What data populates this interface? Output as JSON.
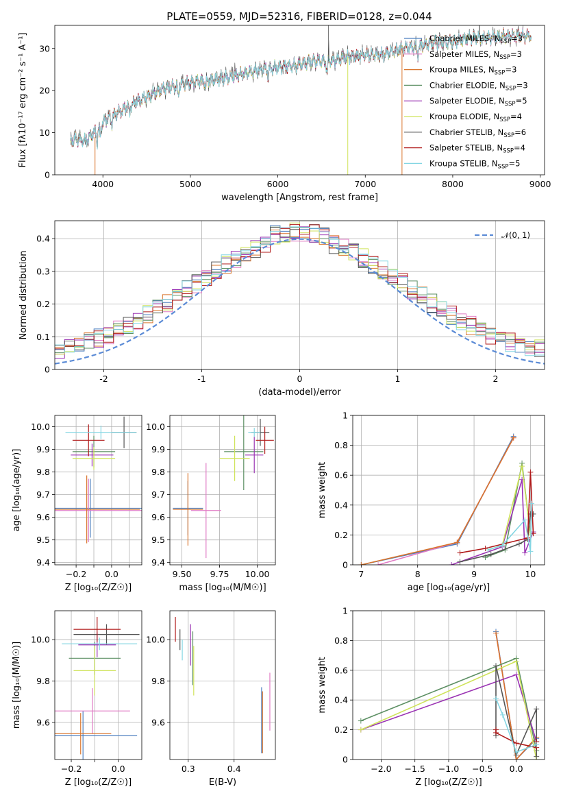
{
  "figure_title": "PLATE=0559, MJD=52316, FIBERID=0128, z=0.044",
  "colors": {
    "chabrier_miles": "#4c7fbf",
    "salpeter_miles": "#e07bc4",
    "kroupa_miles": "#d9742b",
    "chabrier_elodie": "#5c8f63",
    "salpeter_elodie": "#9a33b3",
    "kroupa_elodie": "#cfe35a",
    "chabrier_stelib": "#555555",
    "salpeter_stelib": "#b01a1a",
    "kroupa_stelib": "#84d6e3",
    "gaussian": "#5b8bd6"
  },
  "chart_data": [
    {
      "id": "spectrum",
      "type": "line",
      "title": "",
      "xlabel": "wavelength [Angstrom, rest frame]",
      "ylabel": "Flux [fλ10⁻¹⁷ erg cm⁻² s⁻¹ A⁻¹]",
      "xlim": [
        3450,
        9050
      ],
      "ylim": [
        0,
        35.5
      ],
      "xticks": [
        4000,
        5000,
        6000,
        7000,
        8000,
        9000
      ],
      "yticks": [
        0,
        10,
        20,
        30
      ],
      "grid": false,
      "legend_position": "top-right",
      "continuum_knots": {
        "x": [
          3630,
          3700,
          3800,
          3900,
          4000,
          4100,
          4200,
          4300,
          4400,
          4500,
          4600,
          4700,
          4800,
          4900,
          5000,
          5200,
          5400,
          5600,
          5800,
          6000,
          6200,
          6400,
          6600,
          6800,
          7000,
          7200,
          7400,
          7600,
          7800,
          8000,
          8200,
          8400,
          8600,
          8800,
          8900
        ],
        "y": [
          8,
          8.5,
          8,
          10,
          12.5,
          14,
          15,
          16.5,
          17.5,
          18.5,
          19.5,
          20.5,
          21,
          21.5,
          22,
          22.5,
          23,
          24,
          25,
          25.5,
          26,
          27,
          27,
          28,
          28.5,
          28.5,
          30,
          30.5,
          31.5,
          31.5,
          32.5,
          32.5,
          33,
          33,
          33
        ]
      },
      "series": [
        {
          "name": "Chabrier MILES, N_SSP=3",
          "color_key": "chabrier_miles"
        },
        {
          "name": "Salpeter MILES, N_SSP=3",
          "color_key": "salpeter_miles"
        },
        {
          "name": "Kroupa MILES, N_SSP=3",
          "color_key": "kroupa_miles"
        },
        {
          "name": "Chabrier ELODIE, N_SSP=3",
          "color_key": "chabrier_elodie"
        },
        {
          "name": "Salpeter ELODIE, N_SSP=5",
          "color_key": "salpeter_elodie"
        },
        {
          "name": "Kroupa ELODIE, N_SSP=4",
          "color_key": "kroupa_elodie"
        },
        {
          "name": "Chabrier STELIB, N_SSP=6",
          "color_key": "chabrier_stelib"
        },
        {
          "name": "Salpeter STELIB, N_SSP=4",
          "color_key": "salpeter_stelib"
        },
        {
          "name": "Kroupa STELIB, N_SSP=5",
          "color_key": "kroupa_stelib"
        }
      ]
    },
    {
      "id": "residuals",
      "type": "line",
      "xlabel": "(data-model)/error",
      "ylabel": "Normed distribution",
      "xlim": [
        -2.5,
        2.5
      ],
      "ylim": [
        0,
        0.455
      ],
      "xticks": [
        -2,
        -1,
        0,
        1,
        2
      ],
      "yticks": [
        0.0,
        0.1,
        0.2,
        0.3,
        0.4
      ],
      "grid": true,
      "legend_position": "top-right",
      "legend": "𝒩(0, 1)",
      "gaussian": {
        "mu": 0,
        "sigma": 1,
        "amplitude": 0.3989
      },
      "histogram_bin_width": 0.1
    },
    {
      "id": "age_vs_z",
      "type": "scatter",
      "xlabel": "Z [log₁₀(Z/Z☉)]",
      "ylabel": "age  [log₁₀(age/yr)]",
      "xlim": [
        -0.32,
        0.17
      ],
      "ylim": [
        9.39,
        10.05
      ],
      "xticks": [
        -0.2,
        -0.1,
        0.0,
        0.1
      ],
      "yticks": [
        9.4,
        9.5,
        9.6,
        9.7,
        9.8,
        9.9,
        10.0
      ],
      "ytick_labels": [
        "9.4",
        "9.5",
        "9.6",
        "9.7",
        "9.8",
        "9.9",
        "10.0"
      ],
      "xtick_labels": [
        "−0.2",
        "",
        "0.0",
        ""
      ],
      "grid": true,
      "points": [
        {
          "c": "chabrier_miles",
          "x": -0.12,
          "xerr": 0.32,
          "y": 9.64,
          "yerr": 0.13
        },
        {
          "c": "salpeter_miles",
          "x": -0.13,
          "xerr": 0.3,
          "y": 9.63,
          "yerr": 0.14
        },
        {
          "c": "kroupa_miles",
          "x": -0.14,
          "xerr": 0.3,
          "y": 9.635,
          "yerr": 0.15
        },
        {
          "c": "chabrier_elodie",
          "x": -0.1,
          "xerr": 0.12,
          "y": 9.89,
          "yerr": 0.07
        },
        {
          "c": "salpeter_elodie",
          "x": -0.11,
          "xerr": 0.12,
          "y": 9.875,
          "yerr": 0.05
        },
        {
          "c": "kroupa_elodie",
          "x": -0.1,
          "xerr": 0.12,
          "y": 9.86,
          "yerr": 0.05
        },
        {
          "c": "chabrier_stelib",
          "x": 0.07,
          "xerr": 0.07,
          "y": 9.975,
          "yerr": 0.07
        },
        {
          "c": "salpeter_stelib",
          "x": -0.13,
          "xerr": 0.09,
          "y": 9.94,
          "yerr": 0.07
        },
        {
          "c": "kroupa_stelib",
          "x": -0.06,
          "xerr": 0.2,
          "y": 9.975,
          "yerr": 0.03
        }
      ]
    },
    {
      "id": "age_vs_mass",
      "type": "scatter",
      "xlabel": "mass [log₁₀(M/M☉)]",
      "ylabel": "",
      "xlim": [
        9.42,
        10.12
      ],
      "ylim": [
        9.39,
        10.05
      ],
      "xticks": [
        9.5,
        9.75,
        10.0
      ],
      "xtick_labels": [
        "9.50",
        "9.75",
        "10.00"
      ],
      "yticks": [
        9.4,
        9.5,
        9.6,
        9.7,
        9.8,
        9.9,
        10.0
      ],
      "ytick_labels": [
        "9.4",
        "9.5",
        "9.6",
        "9.7",
        "9.8",
        "9.9",
        "10.0"
      ],
      "grid": true,
      "points": [
        {
          "c": "chabrier_miles",
          "x": 9.54,
          "xerr": 0.1,
          "y": 9.64,
          "yerr": 0.12
        },
        {
          "c": "salpeter_miles",
          "x": 9.66,
          "xerr": 0.1,
          "y": 9.63,
          "yerr": 0.21
        },
        {
          "c": "kroupa_miles",
          "x": 9.54,
          "xerr": 0.1,
          "y": 9.635,
          "yerr": 0.16
        },
        {
          "c": "chabrier_elodie",
          "x": 9.91,
          "xerr": 0.13,
          "y": 9.89,
          "yerr": 0.17
        },
        {
          "c": "salpeter_elodie",
          "x": 9.98,
          "xerr": 0.06,
          "y": 9.875,
          "yerr": 0.08
        },
        {
          "c": "kroupa_elodie",
          "x": 9.85,
          "xerr": 0.1,
          "y": 9.86,
          "yerr": 0.1
        },
        {
          "c": "chabrier_stelib",
          "x": 10.02,
          "xerr": 0.06,
          "y": 9.975,
          "yerr": 0.06
        },
        {
          "c": "salpeter_stelib",
          "x": 10.05,
          "xerr": 0.06,
          "y": 9.94,
          "yerr": 0.06
        },
        {
          "c": "kroupa_stelib",
          "x": 9.98,
          "xerr": 0.04,
          "y": 9.975,
          "yerr": 0.02
        }
      ]
    },
    {
      "id": "weight_vs_age",
      "type": "line",
      "xlabel": "age  [log₁₀(age/yr)]",
      "ylabel": "mass weight",
      "xlim": [
        6.85,
        10.25
      ],
      "ylim": [
        0,
        1.0
      ],
      "xticks": [
        7,
        8,
        9,
        10
      ],
      "yticks": [
        0.0,
        0.2,
        0.4,
        0.6,
        0.8,
        1.0
      ],
      "grid": true,
      "series": [
        {
          "c": "chabrier_miles",
          "x": [
            7.0,
            8.7,
            9.7
          ],
          "y": [
            0.0,
            0.14,
            0.86
          ]
        },
        {
          "c": "salpeter_miles",
          "x": [
            7.3,
            8.7,
            9.7
          ],
          "y": [
            0.0,
            0.15,
            0.85
          ]
        },
        {
          "c": "kroupa_miles",
          "x": [
            7.0,
            8.7,
            9.7
          ],
          "y": [
            0.0,
            0.15,
            0.85
          ]
        },
        {
          "c": "chabrier_elodie",
          "x": [
            9.2,
            9.55,
            9.85,
            10.0
          ],
          "y": [
            0.05,
            0.1,
            0.68,
            0.2
          ]
        },
        {
          "c": "salpeter_elodie",
          "x": [
            8.6,
            9.5,
            9.85,
            9.9,
            10.05
          ],
          "y": [
            0.0,
            0.12,
            0.57,
            0.08,
            0.22
          ]
        },
        {
          "c": "kroupa_elodie",
          "x": [
            9.25,
            9.5,
            9.85,
            10.0
          ],
          "y": [
            0.1,
            0.13,
            0.66,
            0.2
          ]
        },
        {
          "c": "chabrier_stelib",
          "x": [
            8.75,
            9.3,
            9.8,
            9.95,
            10.0,
            10.05
          ],
          "y": [
            0.02,
            0.07,
            0.14,
            0.17,
            0.34,
            0.34
          ]
        },
        {
          "c": "salpeter_stelib",
          "x": [
            8.75,
            9.2,
            9.95,
            10.0,
            10.05
          ],
          "y": [
            0.08,
            0.11,
            0.18,
            0.62,
            0.21
          ]
        },
        {
          "c": "kroupa_stelib",
          "x": [
            9.25,
            9.5,
            9.9,
            10.0,
            10.02
          ],
          "y": [
            0.1,
            0.13,
            0.3,
            0.09,
            0.41
          ]
        }
      ]
    },
    {
      "id": "mass_vs_z",
      "type": "scatter",
      "xlabel": "Z [log₁₀(Z/Z☉)]",
      "ylabel": "mass [log₁₀(M/M☉)]",
      "xlim": [
        -0.27,
        0.1
      ],
      "ylim": [
        9.42,
        10.14
      ],
      "xticks": [
        -0.2,
        -0.1,
        0.0
      ],
      "xtick_labels": [
        "−0.2",
        "",
        "0.0"
      ],
      "yticks": [
        9.6,
        9.8,
        10.0
      ],
      "ytick_labels": [
        "9.6",
        "9.8",
        "10.0"
      ],
      "grid": true,
      "points": [
        {
          "c": "chabrier_miles",
          "x": -0.15,
          "xerr": 0.23,
          "y": 9.535,
          "yerr": 0.12
        },
        {
          "c": "salpeter_miles",
          "x": -0.11,
          "xerr": 0.16,
          "y": 9.655,
          "yerr": 0.11
        },
        {
          "c": "kroupa_miles",
          "x": -0.16,
          "xerr": 0.13,
          "y": 9.545,
          "yerr": 0.1
        },
        {
          "c": "chabrier_elodie",
          "x": -0.1,
          "xerr": 0.11,
          "y": 9.91,
          "yerr": 0.08
        },
        {
          "c": "salpeter_elodie",
          "x": -0.09,
          "xerr": 0.08,
          "y": 9.975,
          "yerr": 0.06
        },
        {
          "c": "kroupa_elodie",
          "x": -0.1,
          "xerr": 0.09,
          "y": 9.85,
          "yerr": 0.12
        },
        {
          "c": "chabrier_stelib",
          "x": -0.05,
          "xerr": 0.14,
          "y": 10.025,
          "yerr": 0.05
        },
        {
          "c": "salpeter_stelib",
          "x": -0.09,
          "xerr": 0.1,
          "y": 10.05,
          "yerr": 0.06
        },
        {
          "c": "kroupa_stelib",
          "x": -0.08,
          "xerr": 0.16,
          "y": 9.98,
          "yerr": 0.03
        }
      ]
    },
    {
      "id": "mass_vs_ebv",
      "type": "scatter",
      "xlabel": "E(B-V)",
      "ylabel": "",
      "xlim": [
        0.26,
        0.49
      ],
      "ylim": [
        9.42,
        10.14
      ],
      "xticks": [
        0.3,
        0.4
      ],
      "xtick_labels": [
        "0.3",
        "0.4"
      ],
      "yticks": [
        9.6,
        9.8,
        10.0
      ],
      "ytick_labels": [
        "9.6",
        "9.8",
        "10.0"
      ],
      "grid": true,
      "points": [
        {
          "c": "chabrier_miles",
          "x": 0.46,
          "xerr": 0,
          "y": 9.61,
          "yerr": 0.16
        },
        {
          "c": "salpeter_miles",
          "x": 0.478,
          "xerr": 0,
          "y": 9.7,
          "yerr": 0.14
        },
        {
          "c": "kroupa_miles",
          "x": 0.462,
          "xerr": 0,
          "y": 9.6,
          "yerr": 0.15
        },
        {
          "c": "chabrier_elodie",
          "x": 0.31,
          "xerr": 0,
          "y": 9.91,
          "yerr": 0.13
        },
        {
          "c": "salpeter_elodie",
          "x": 0.305,
          "xerr": 0,
          "y": 9.975,
          "yerr": 0.1
        },
        {
          "c": "kroupa_elodie",
          "x": 0.312,
          "xerr": 0,
          "y": 9.85,
          "yerr": 0.12
        },
        {
          "c": "chabrier_stelib",
          "x": 0.282,
          "xerr": 0,
          "y": 10.0,
          "yerr": 0.05
        },
        {
          "c": "salpeter_stelib",
          "x": 0.272,
          "xerr": 0,
          "y": 10.05,
          "yerr": 0.06
        },
        {
          "c": "kroupa_stelib",
          "x": 0.287,
          "xerr": 0,
          "y": 9.95,
          "yerr": 0.05
        }
      ]
    },
    {
      "id": "weight_vs_z",
      "type": "line",
      "xlabel": "Z [log₁₀(Z/Z☉)]",
      "ylabel": "mass weight",
      "xlim": [
        -2.42,
        0.42
      ],
      "ylim": [
        0,
        1.0
      ],
      "xticks": [
        -2.0,
        -1.5,
        -1.0,
        -0.5,
        0.0
      ],
      "xtick_labels": [
        "−2.0",
        "−1.5",
        "−1.0",
        "−0.5",
        "0.0"
      ],
      "yticks": [
        0.0,
        0.2,
        0.4,
        0.6,
        0.8,
        1.0
      ],
      "grid": true,
      "series": [
        {
          "c": "chabrier_miles",
          "x": [
            -0.3,
            0.0,
            0.3
          ],
          "y": [
            0.86,
            0.0,
            0.14
          ]
        },
        {
          "c": "salpeter_miles",
          "x": [
            -0.3,
            0.0,
            0.3
          ],
          "y": [
            0.85,
            0.0,
            0.15
          ]
        },
        {
          "c": "kroupa_miles",
          "x": [
            -0.3,
            0.0,
            0.3
          ],
          "y": [
            0.85,
            0.0,
            0.15
          ]
        },
        {
          "c": "chabrier_elodie",
          "x": [
            -2.3,
            0.0,
            0.3
          ],
          "y": [
            0.26,
            0.68,
            0.06
          ]
        },
        {
          "c": "salpeter_elodie",
          "x": [
            -2.3,
            0.0,
            0.3
          ],
          "y": [
            0.2,
            0.57,
            0.12
          ]
        },
        {
          "c": "kroupa_elodie",
          "x": [
            -2.3,
            0.0,
            0.3
          ],
          "y": [
            0.2,
            0.66,
            0.0
          ]
        },
        {
          "c": "chabrier_stelib",
          "x": [
            -0.3,
            -0.3,
            0.0,
            0.3,
            0.3
          ],
          "y": [
            0.16,
            0.63,
            0.03,
            0.34,
            0.02
          ]
        },
        {
          "c": "salpeter_stelib",
          "x": [
            -0.3,
            -0.3,
            0.0,
            0.3,
            0.3
          ],
          "y": [
            0.2,
            0.18,
            0.11,
            0.08,
            0.12
          ]
        },
        {
          "c": "kroupa_stelib",
          "x": [
            -0.3,
            -0.2,
            0.0,
            0.3
          ],
          "y": [
            0.41,
            0.3,
            0.05,
            0.1
          ]
        }
      ]
    }
  ]
}
